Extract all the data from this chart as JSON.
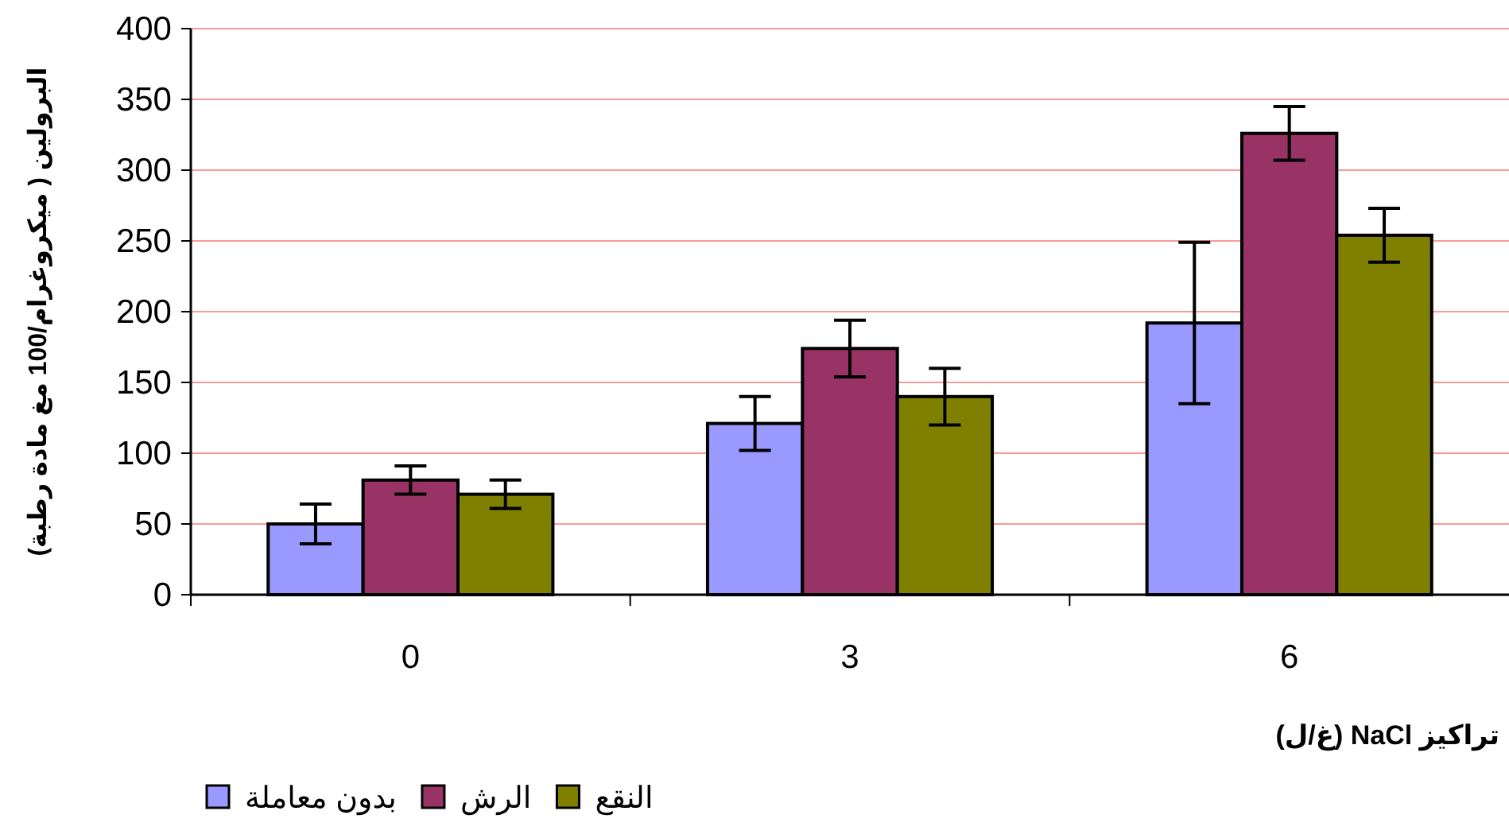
{
  "chart_data": {
    "type": "bar",
    "xlabel": "تراكيز NaCl (غ/ل)",
    "ylabel": "البرولين ( ميكروغرام/100 مغ مادة رطبة)",
    "categories": [
      "0",
      "3",
      "6"
    ],
    "series": [
      {
        "name": "بدون معاملة",
        "color": "#9999ff",
        "values": [
          50,
          121,
          192
        ],
        "errors": [
          14,
          19,
          57
        ]
      },
      {
        "name": "الرش",
        "color": "#993366",
        "values": [
          81,
          174,
          326
        ],
        "errors": [
          10,
          20,
          19
        ]
      },
      {
        "name": "النقع",
        "color": "#808000",
        "values": [
          71,
          140,
          254
        ],
        "errors": [
          10,
          20,
          19
        ]
      }
    ],
    "ylim": [
      0,
      400
    ],
    "yticks": [
      0,
      50,
      100,
      150,
      200,
      250,
      300,
      350,
      400
    ],
    "grid": "y",
    "legend": "bottom left"
  }
}
